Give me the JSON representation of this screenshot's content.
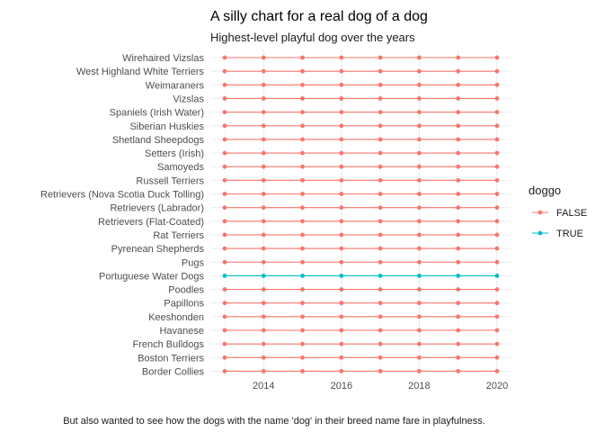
{
  "chart_data": {
    "type": "line",
    "title": "A silly chart for a real dog of a dog",
    "subtitle": "Highest-level playful dog over the years",
    "caption": "But also wanted to see how the dogs with the name 'dog' in their breed name fare in playfulness.",
    "xlabel": "",
    "ylabel": "",
    "x_range": [
      2013,
      2020
    ],
    "x_ticks": [
      2014,
      2016,
      2018,
      2020
    ],
    "x_years": [
      2013,
      2014,
      2015,
      2016,
      2017,
      2018,
      2019,
      2020
    ],
    "grid": true,
    "legend": {
      "title": "doggo",
      "position": "right",
      "entries": [
        {
          "label": "FALSE",
          "color": "#F8766D"
        },
        {
          "label": "TRUE",
          "color": "#00BFC4"
        }
      ]
    },
    "categories": [
      {
        "name": "Wirehaired Vizslas",
        "doggo": false
      },
      {
        "name": "West Highland White Terriers",
        "doggo": false
      },
      {
        "name": "Weimaraners",
        "doggo": false
      },
      {
        "name": "Vizslas",
        "doggo": false
      },
      {
        "name": "Spaniels (Irish Water)",
        "doggo": false
      },
      {
        "name": "Siberian Huskies",
        "doggo": false
      },
      {
        "name": "Shetland Sheepdogs",
        "doggo": false
      },
      {
        "name": "Setters (Irish)",
        "doggo": false
      },
      {
        "name": "Samoyeds",
        "doggo": false
      },
      {
        "name": "Russell Terriers",
        "doggo": false
      },
      {
        "name": "Retrievers (Nova Scotia Duck Tolling)",
        "doggo": false
      },
      {
        "name": "Retrievers (Labrador)",
        "doggo": false
      },
      {
        "name": "Retrievers (Flat-Coated)",
        "doggo": false
      },
      {
        "name": "Rat Terriers",
        "doggo": false
      },
      {
        "name": "Pyrenean Shepherds",
        "doggo": false
      },
      {
        "name": "Pugs",
        "doggo": false
      },
      {
        "name": "Portuguese Water Dogs",
        "doggo": true
      },
      {
        "name": "Poodles",
        "doggo": false
      },
      {
        "name": "Papillons",
        "doggo": false
      },
      {
        "name": "Keeshonden",
        "doggo": false
      },
      {
        "name": "Havanese",
        "doggo": false
      },
      {
        "name": "French Bulldogs",
        "doggo": false
      },
      {
        "name": "Boston Terriers",
        "doggo": false
      },
      {
        "name": "Border Collies",
        "doggo": false
      }
    ]
  }
}
